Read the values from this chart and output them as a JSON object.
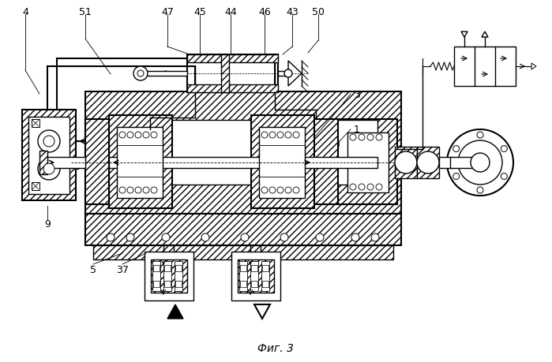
{
  "title": "Фиг. 3",
  "bg_color": "#ffffff",
  "line_color": "#000000",
  "fig_label": "Фиг. 3"
}
